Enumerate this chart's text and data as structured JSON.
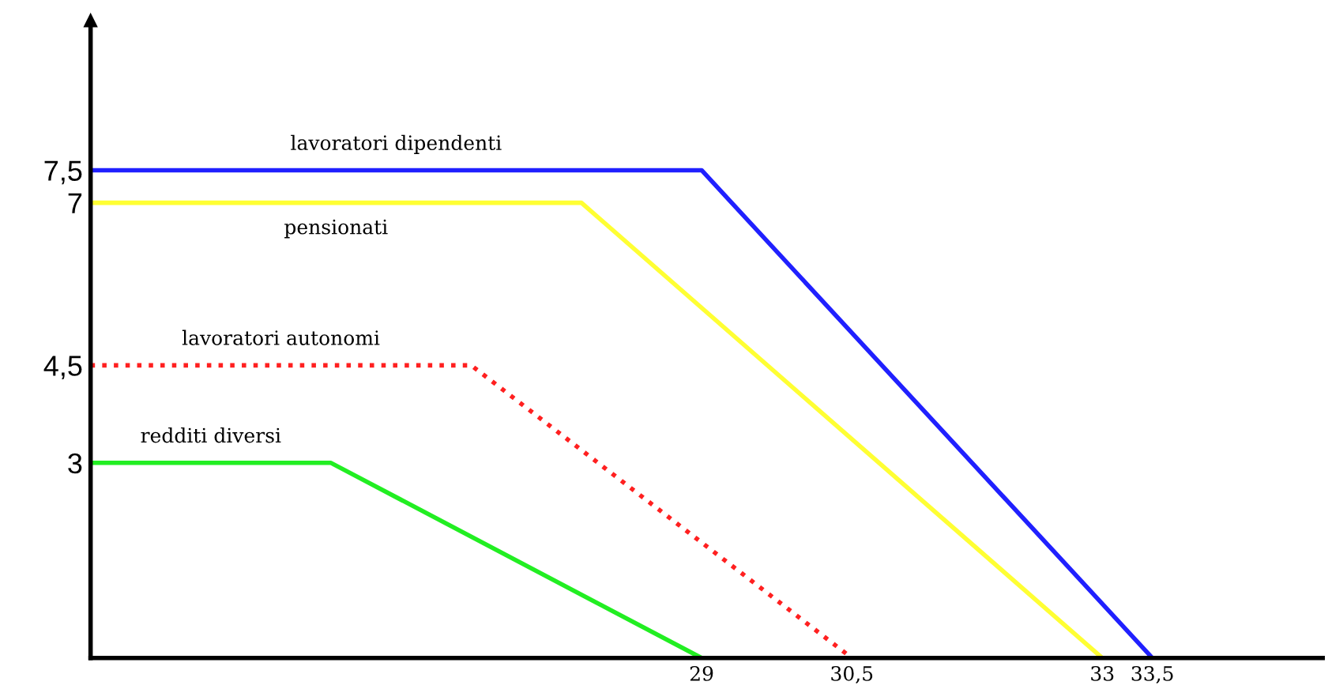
{
  "chart_data": {
    "type": "line",
    "xlim": [
      22.9,
      35.2
    ],
    "ylim": [
      0,
      9.8
    ],
    "xticks": [
      29,
      {
        "value": 30.5,
        "label": "30,5"
      },
      33,
      {
        "value": 33.5,
        "label": "33,5"
      }
    ],
    "yticks": [
      3,
      {
        "value": 4.5,
        "label": "4,5"
      },
      7,
      {
        "value": 7.5,
        "label": "7,5"
      }
    ],
    "grid": false,
    "legend": false,
    "marker": "none",
    "series": [
      {
        "name": "lavoratori dipendenti",
        "color": "#2020ff",
        "x": [
          22.9,
          29.0,
          33.5
        ],
        "values": [
          7.5,
          7.5,
          0
        ]
      },
      {
        "name": "pensionati",
        "color": "#ffff33",
        "x": [
          22.9,
          27.8,
          33
        ],
        "values": [
          7,
          7,
          0
        ]
      },
      {
        "name": "lavoratori autonomi",
        "color": "#ff2020",
        "line_style": "dotted",
        "x": [
          22.9,
          26.7,
          30.5
        ],
        "values": [
          4.5,
          4.5,
          0
        ]
      },
      {
        "name": "redditi diversi",
        "color": "#22ee22",
        "x": [
          22.9,
          25.3,
          29
        ],
        "values": [
          3,
          3,
          0
        ]
      }
    ]
  }
}
